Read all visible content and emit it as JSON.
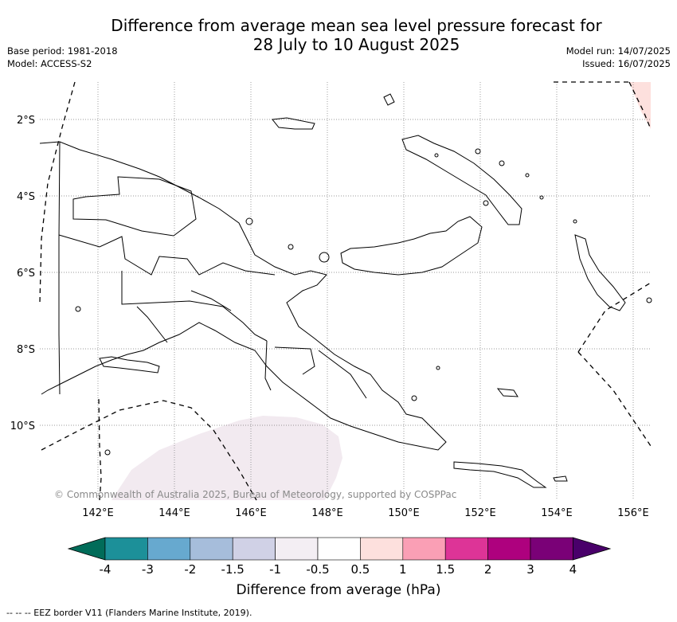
{
  "header": {
    "title_line1": "Difference from average mean sea level pressure forecast for",
    "title_line2": "28 July to 10 August 2025",
    "base_period": "Base period: 1981-2018",
    "model": "Model: ACCESS-S2",
    "model_run": "Model run: 14/07/2025",
    "issued": "Issued: 16/07/2025"
  },
  "map": {
    "lat_labels": [
      "2°S",
      "4°S",
      "6°S",
      "8°S",
      "10°S"
    ],
    "lon_labels": [
      "142°E",
      "144°E",
      "146°E",
      "148°E",
      "150°E",
      "152°E",
      "154°E",
      "156°E"
    ],
    "copyright": "© Commonwealth of Australia 2025, Bureau of Meteorology, supported by COSPPac",
    "anomaly_areas": [
      {
        "description_color": "#f2eaf0",
        "class": "-1 to -0.5"
      },
      {
        "description_color": "#fde0dd",
        "class": "0.5 to 1"
      }
    ]
  },
  "colorbar": {
    "label": "Difference from average (hPa)",
    "ticks": [
      "-4",
      "-3",
      "-2",
      "-1.5",
      "-1",
      "-0.5",
      "0.5",
      "1",
      "1.5",
      "2",
      "3",
      "4"
    ],
    "colors": [
      "#016c59",
      "#1c9099",
      "#67a9cf",
      "#a6bddb",
      "#d0d1e6",
      "#f3eef3",
      "#ffffff",
      "#fde0dd",
      "#fa9fb5",
      "#dd3497",
      "#ae017e",
      "#7a0177",
      "#49006a"
    ]
  },
  "footnote": "--  --  -- EEZ border V11 (Flanders Marine Institute, 2019)."
}
